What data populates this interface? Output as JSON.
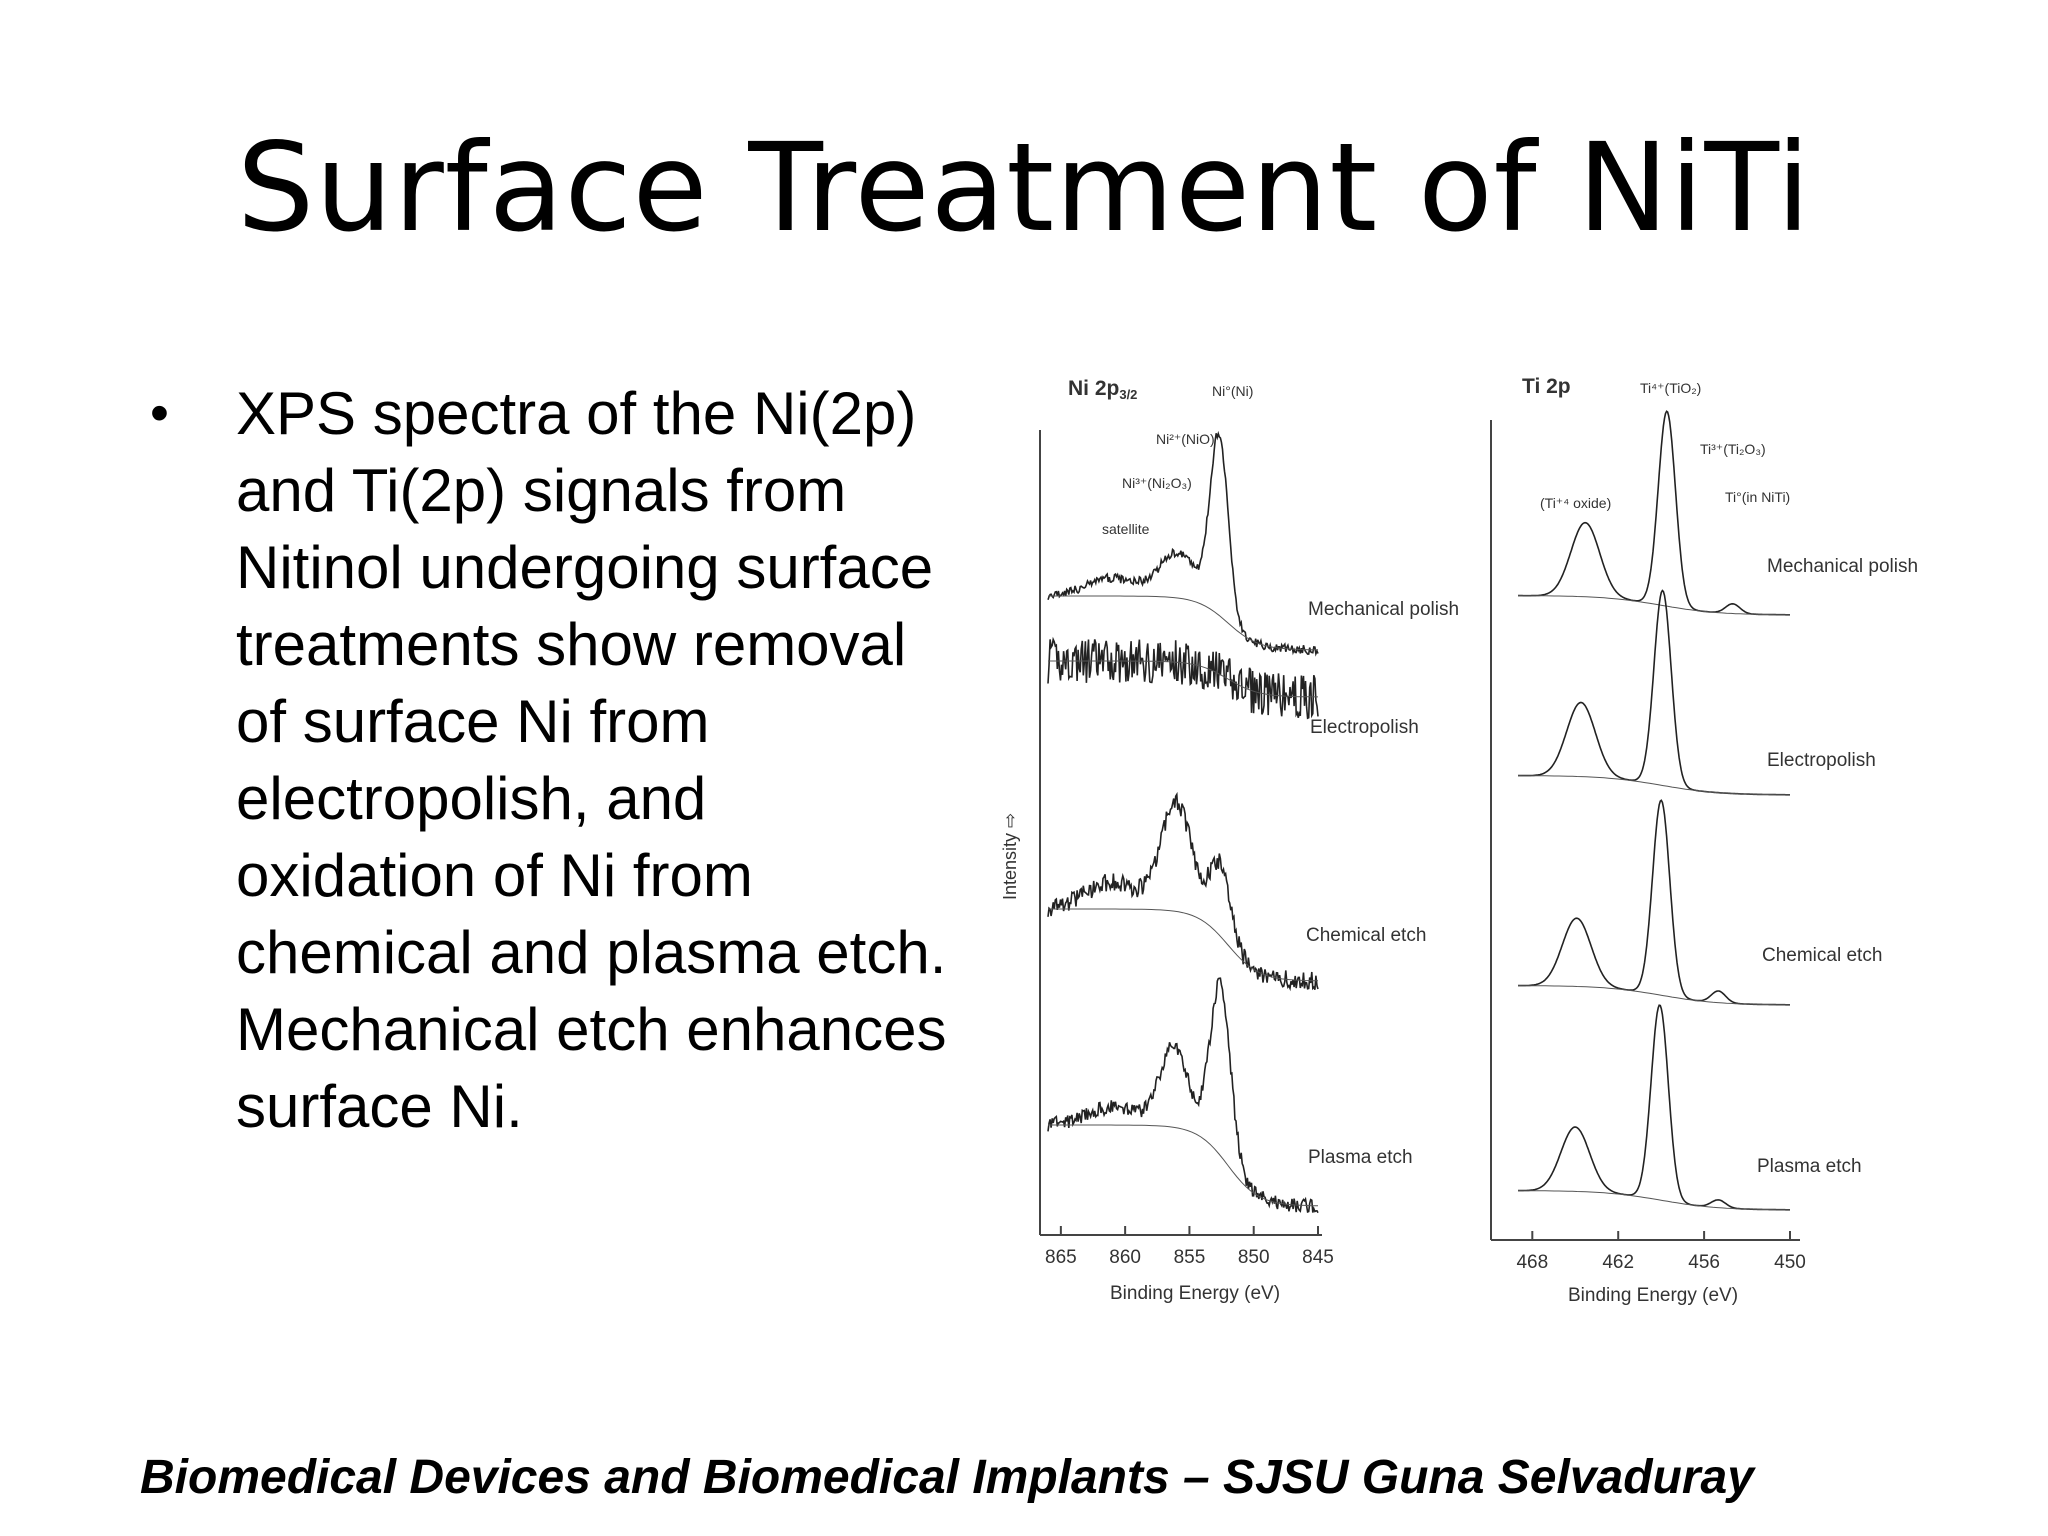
{
  "title": "Surface Treatment of NiTi",
  "bullet": "XPS spectra of the Ni(2p) and Ti(2p) signals from Nitinol undergoing surface treatments show removal of surface Ni from electropolish, and oxidation of Ni from chemical and plasma etch. Mechanical etch enhances surface Ni.",
  "footer": "Biomedical Devices and Biomedical Implants – SJSU Guna Selvaduray",
  "chart_data": [
    {
      "type": "line",
      "panel_label": "Ni 2p3/2",
      "xlabel": "Binding Energy (eV)",
      "ylabel": "Intensity ⇨",
      "x_ticks": [
        865,
        860,
        855,
        850,
        845
      ],
      "xlim": [
        866,
        845
      ],
      "annotations": [
        "Ni°(Ni)",
        "Ni²⁺(NiO)",
        "Ni³⁺(Ni₂O₃)",
        "satellite"
      ],
      "series": [
        {
          "name": "Mechanical polish",
          "base_high": 0.3,
          "base_low": 0.0,
          "peaks": [
            {
              "center": 852.7,
              "height": 1.0,
              "width": 0.7
            },
            {
              "center": 855.9,
              "height": 0.25,
              "width": 1.4
            },
            {
              "center": 861.0,
              "height": 0.1,
              "width": 2.0
            }
          ]
        },
        {
          "name": "Electropolish",
          "base_high": 0.55,
          "base_low": 0.35,
          "peaks": []
        },
        {
          "name": "Chemical etch",
          "base_high": 0.45,
          "base_low": 0.05,
          "peaks": [
            {
              "center": 852.6,
              "height": 0.4,
              "width": 0.8
            },
            {
              "center": 856.0,
              "height": 0.6,
              "width": 1.2
            },
            {
              "center": 861.0,
              "height": 0.15,
              "width": 2.0
            }
          ]
        },
        {
          "name": "Plasma etch",
          "base_high": 0.5,
          "base_low": 0.05,
          "peaks": [
            {
              "center": 852.6,
              "height": 0.95,
              "width": 0.8
            },
            {
              "center": 856.2,
              "height": 0.45,
              "width": 1.1
            },
            {
              "center": 861.0,
              "height": 0.1,
              "width": 2.0
            }
          ]
        }
      ]
    },
    {
      "type": "line",
      "panel_label": "Ti 2p",
      "xlabel": "Binding Energy (eV)",
      "x_ticks": [
        468,
        462,
        456,
        450
      ],
      "xlim": [
        469,
        450
      ],
      "annotations": [
        "Ti⁴⁺(TiO₂)",
        "Ti³⁺(Ti₂O₃)",
        "(Ti⁺⁴ oxide)",
        "Ti°(in NiTi)"
      ],
      "series": [
        {
          "name": "Mechanical polish",
          "base_high": 0.1,
          "base_low": 0.0,
          "peaks": [
            {
              "center": 458.6,
              "height": 1.0,
              "width": 0.6
            },
            {
              "center": 464.3,
              "height": 0.38,
              "width": 1.0
            },
            {
              "center": 454.0,
              "height": 0.05,
              "width": 0.5
            }
          ]
        },
        {
          "name": "Electropolish",
          "base_high": 0.1,
          "base_low": 0.0,
          "peaks": [
            {
              "center": 458.9,
              "height": 1.0,
              "width": 0.6
            },
            {
              "center": 464.6,
              "height": 0.38,
              "width": 1.0
            }
          ]
        },
        {
          "name": "Chemical etch",
          "base_high": 0.1,
          "base_low": 0.0,
          "peaks": [
            {
              "center": 459.0,
              "height": 1.0,
              "width": 0.6
            },
            {
              "center": 464.9,
              "height": 0.35,
              "width": 1.0
            },
            {
              "center": 455.0,
              "height": 0.06,
              "width": 0.5
            }
          ]
        },
        {
          "name": "Plasma etch",
          "base_high": 0.1,
          "base_low": 0.0,
          "peaks": [
            {
              "center": 459.1,
              "height": 1.0,
              "width": 0.6
            },
            {
              "center": 465.0,
              "height": 0.33,
              "width": 1.0
            },
            {
              "center": 455.0,
              "height": 0.04,
              "width": 0.5
            }
          ]
        }
      ]
    }
  ]
}
